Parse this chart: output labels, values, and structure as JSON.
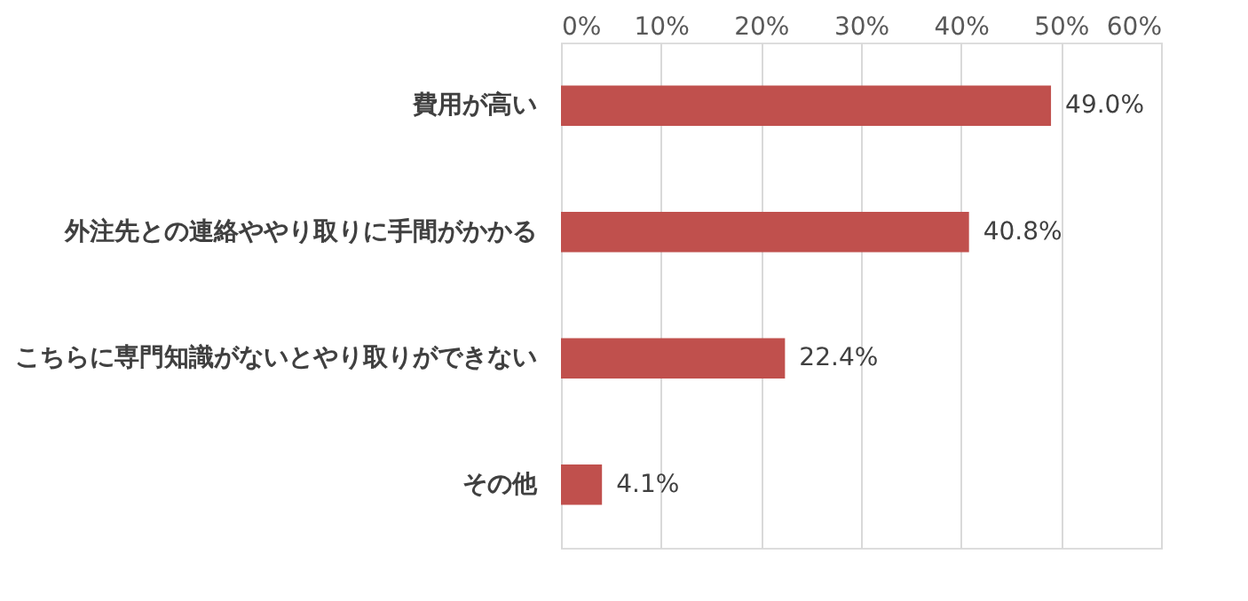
{
  "chart_data": {
    "type": "bar",
    "orientation": "horizontal",
    "categories": [
      "費用が高い",
      "外注先との連絡ややり取りに手間がかかる",
      "こちらに専門知識がないとやり取りができない",
      "その他"
    ],
    "values": [
      49.0,
      40.8,
      22.4,
      4.1
    ],
    "value_labels": [
      "49.0%",
      "40.8%",
      "22.4%",
      "4.1%"
    ],
    "color": "#c0504d",
    "xlim": [
      0,
      60
    ],
    "xticks": [
      {
        "value": 0,
        "label": "0%"
      },
      {
        "value": 10,
        "label": "10%"
      },
      {
        "value": 20,
        "label": "20%"
      },
      {
        "value": 30,
        "label": "30%"
      },
      {
        "value": 40,
        "label": "40%"
      },
      {
        "value": 50,
        "label": "50%"
      },
      {
        "value": 60,
        "label": "60%"
      }
    ],
    "grid": "x"
  }
}
